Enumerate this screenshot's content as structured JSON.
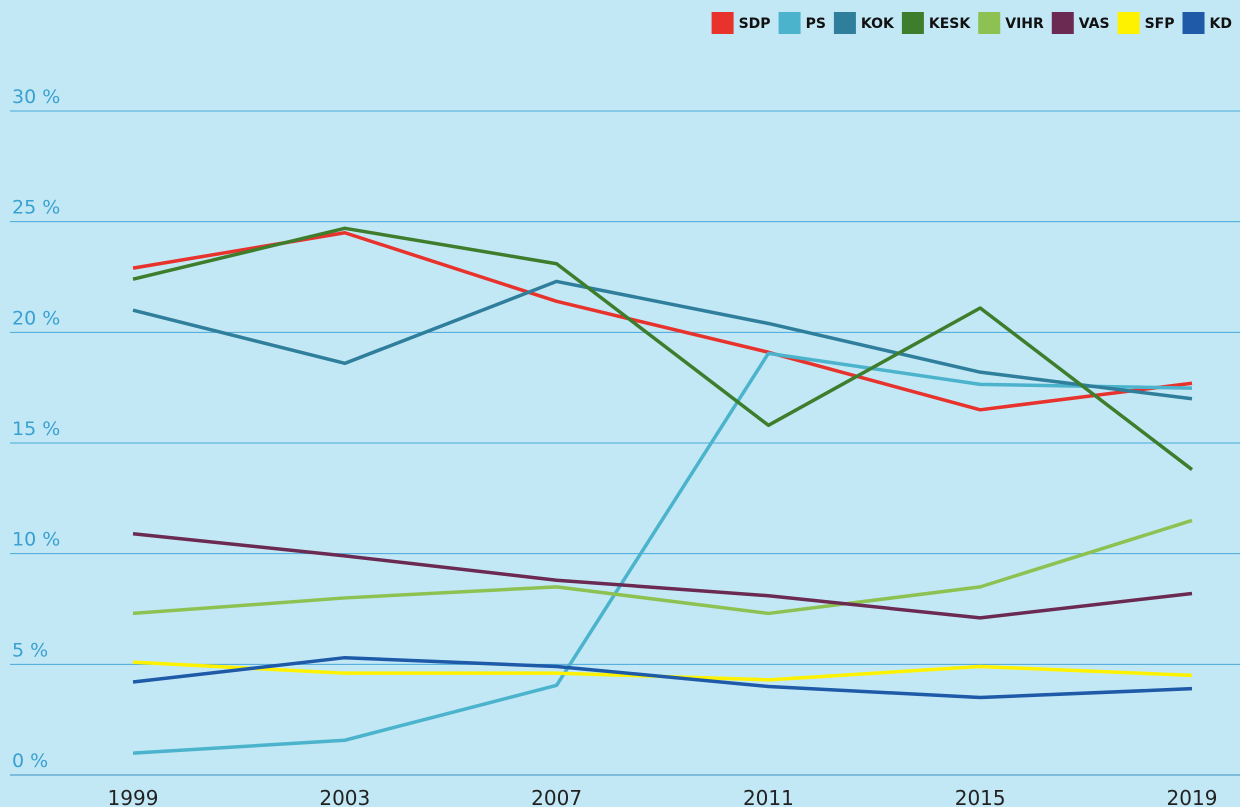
{
  "chart_data": {
    "type": "line",
    "x": [
      1999,
      2003,
      2007,
      2011,
      2015,
      2019
    ],
    "series": [
      {
        "name": "SDP",
        "color": "#e8322c",
        "values": [
          22.9,
          24.5,
          21.4,
          19.1,
          16.5,
          17.7
        ]
      },
      {
        "name": "PS",
        "color": "#4bb3cc",
        "values": [
          0.99,
          1.57,
          4.05,
          19.05,
          17.65,
          17.48
        ]
      },
      {
        "name": "KOK",
        "color": "#2f7f9c",
        "values": [
          21.0,
          18.6,
          22.3,
          20.4,
          18.2,
          17.0
        ]
      },
      {
        "name": "KESK",
        "color": "#3e7d2c",
        "values": [
          22.4,
          24.7,
          23.1,
          15.8,
          21.1,
          13.8
        ]
      },
      {
        "name": "VIHR",
        "color": "#8dc252",
        "values": [
          7.3,
          8.0,
          8.5,
          7.3,
          8.5,
          11.5
        ]
      },
      {
        "name": "VAS",
        "color": "#6b2a52",
        "values": [
          10.9,
          9.9,
          8.8,
          8.1,
          7.1,
          8.2
        ]
      },
      {
        "name": "SFP",
        "color": "#fff200",
        "values": [
          5.1,
          4.6,
          4.6,
          4.3,
          4.9,
          4.5
        ]
      },
      {
        "name": "KD",
        "color": "#1e5aa8",
        "values": [
          4.2,
          5.3,
          4.9,
          4.0,
          3.5,
          3.9
        ]
      }
    ],
    "xlim": [
      1999,
      2019
    ],
    "ylim": [
      0,
      30
    ],
    "yticks": [
      {
        "value": 0,
        "label": "0 %"
      },
      {
        "value": 5,
        "label": "5 %"
      },
      {
        "value": 10,
        "label": "10 %"
      },
      {
        "value": 15,
        "label": "15 %"
      },
      {
        "value": 20,
        "label": "20 %"
      },
      {
        "value": 25,
        "label": "25 %"
      },
      {
        "value": 30,
        "label": "30 %"
      }
    ],
    "grid": true,
    "legend": "top-right"
  }
}
